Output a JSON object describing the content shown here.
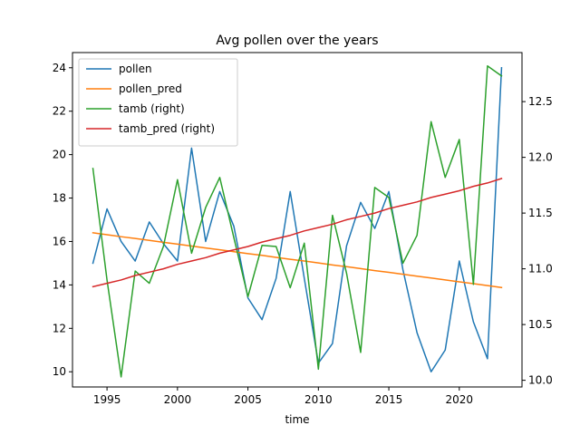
{
  "chart_data": {
    "type": "line",
    "title": "Avg pollen over the years",
    "xlabel": "time",
    "ylabel_left": "",
    "ylabel_right": "",
    "x": [
      1994,
      1995,
      1996,
      1997,
      1998,
      1999,
      2000,
      2001,
      2002,
      2003,
      2004,
      2005,
      2006,
      2007,
      2008,
      2009,
      2010,
      2011,
      2012,
      2013,
      2014,
      2015,
      2016,
      2017,
      2018,
      2019,
      2020,
      2021,
      2022,
      2023
    ],
    "x_ticks": [
      1995,
      2000,
      2005,
      2010,
      2015,
      2020
    ],
    "xlim": [
      1992.55,
      2024.45
    ],
    "y_left_ticks": [
      10,
      12,
      14,
      16,
      18,
      20,
      22,
      24
    ],
    "y_left_lim": [
      9.3,
      24.7
    ],
    "y_right_ticks": [
      10.0,
      10.5,
      11.0,
      11.5,
      12.0,
      12.5
    ],
    "y_right_lim": [
      9.94,
      12.94
    ],
    "legend_placement": "upper left",
    "grid": false,
    "series": [
      {
        "name": "pollen",
        "axis": "left",
        "color": "#1f77b4",
        "values": [
          15.0,
          17.5,
          16.0,
          15.1,
          16.9,
          15.9,
          15.1,
          20.3,
          16.0,
          18.3,
          16.7,
          13.4,
          12.4,
          14.3,
          18.3,
          14.3,
          10.4,
          11.3,
          15.8,
          17.8,
          16.6,
          18.3,
          14.7,
          11.8,
          10.0,
          11.0,
          15.1,
          12.3,
          10.6,
          24.0
        ]
      },
      {
        "name": "pollen_pred",
        "axis": "left",
        "color": "#ff7f0e",
        "values": [
          16.4,
          16.31,
          16.22,
          16.14,
          16.05,
          15.96,
          15.88,
          15.79,
          15.7,
          15.62,
          15.53,
          15.44,
          15.36,
          15.27,
          15.18,
          15.1,
          15.01,
          14.92,
          14.84,
          14.75,
          14.66,
          14.58,
          14.49,
          14.4,
          14.32,
          14.23,
          14.14,
          14.06,
          13.97,
          13.88
        ]
      },
      {
        "name": "tamb (right)",
        "axis": "right",
        "color": "#2ca02c",
        "values": [
          11.9,
          10.9,
          10.03,
          10.98,
          10.87,
          11.2,
          11.8,
          11.14,
          11.55,
          11.82,
          11.28,
          10.75,
          11.21,
          11.2,
          10.83,
          11.23,
          10.1,
          11.48,
          10.96,
          10.25,
          11.73,
          11.64,
          11.05,
          11.3,
          12.32,
          11.82,
          12.16,
          10.86,
          12.82,
          12.73
        ]
      },
      {
        "name": "tamb_pred (right)",
        "axis": "right",
        "color": "#d62728",
        "values": [
          10.84,
          10.87,
          10.9,
          10.94,
          10.97,
          11.0,
          11.04,
          11.07,
          11.1,
          11.14,
          11.17,
          11.2,
          11.24,
          11.27,
          11.3,
          11.34,
          11.37,
          11.4,
          11.44,
          11.47,
          11.5,
          11.54,
          11.57,
          11.6,
          11.64,
          11.67,
          11.7,
          11.74,
          11.77,
          11.81
        ]
      }
    ]
  }
}
